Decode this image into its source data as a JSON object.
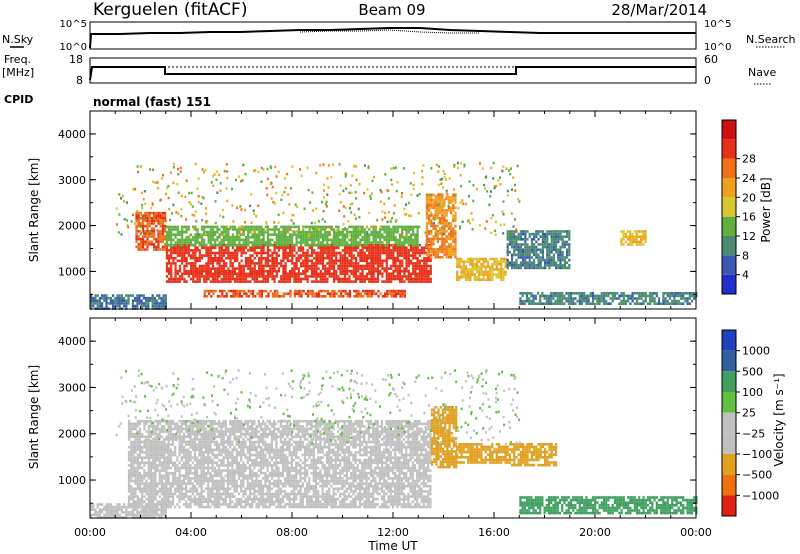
{
  "header": {
    "station": "Kerguelen (fitACF)",
    "beam": "Beam 09",
    "date": "28/Mar/2014"
  },
  "panels": {
    "nsky": {
      "left_label": "N.Sky",
      "right_label": "N.Search",
      "left_ticks": [
        "10^5",
        "10^0"
      ],
      "right_ticks": [
        "10^5",
        "10^0"
      ]
    },
    "freq": {
      "left_label_1": "Freq.",
      "left_label_2": "[MHz]",
      "right_label": "Nave",
      "left_ticks": [
        "18",
        "8"
      ],
      "right_ticks": [
        "60",
        "0"
      ]
    },
    "cpid": {
      "label": "CPID",
      "mode": "normal (fast) 151"
    }
  },
  "colors": {
    "power_scale": [
      "#2030c8",
      "#3a5ab0",
      "#4a8a70",
      "#60b040",
      "#d8c830",
      "#f0a020",
      "#f07018",
      "#e83018",
      "#d01010"
    ],
    "velocity_scale": [
      "#2040c0",
      "#3060a0",
      "#40a060",
      "#60c040",
      "#c0c0c0",
      "#c0c0c0",
      "#e0a020",
      "#f07010",
      "#e02010"
    ]
  },
  "chart_data": [
    {
      "type": "heatmap",
      "name": "power",
      "ylabel": "Slant Range [km]",
      "ylim": [
        180,
        4500
      ],
      "yticks": [
        "1000",
        "2000",
        "3000",
        "4000"
      ],
      "colorbar_label": "Power [dB]",
      "colorbar_ticks": [
        "4",
        "8",
        "12",
        "16",
        "20",
        "24",
        "28"
      ],
      "colorbar_range": [
        0,
        32
      ],
      "regions": [
        {
          "t0": 3.0,
          "t1": 13.5,
          "r0": 800,
          "r1": 1600,
          "value": 28
        },
        {
          "t0": 4.5,
          "t1": 12.5,
          "r0": 450,
          "r1": 600,
          "value": 26
        },
        {
          "t0": 1.8,
          "t1": 3.0,
          "r0": 1500,
          "r1": 2300,
          "value": 26
        },
        {
          "t0": 13.3,
          "t1": 14.5,
          "r0": 1300,
          "r1": 2700,
          "value": 22
        },
        {
          "t0": 14.5,
          "t1": 16.5,
          "r0": 800,
          "r1": 1300,
          "value": 18
        },
        {
          "t0": 3.0,
          "t1": 13.0,
          "r0": 1600,
          "r1": 2000,
          "value": 12
        },
        {
          "t0": 0.0,
          "t1": 3.0,
          "r0": 200,
          "r1": 500,
          "value": 6
        },
        {
          "t0": 17.0,
          "t1": 24.0,
          "r0": 300,
          "r1": 550,
          "value": 7
        },
        {
          "t0": 16.5,
          "t1": 19.0,
          "r0": 1100,
          "r1": 1900,
          "value": 7
        },
        {
          "t0": 21.0,
          "t1": 22.0,
          "r0": 1600,
          "r1": 1900,
          "value": 18
        }
      ]
    },
    {
      "type": "heatmap",
      "name": "velocity",
      "xlabel": "Time UT",
      "ylabel": "Slant Range [km]",
      "xlim": [
        0,
        24
      ],
      "xticks": [
        "00:00",
        "04:00",
        "08:00",
        "12:00",
        "16:00",
        "20:00",
        "00:00"
      ],
      "ylim": [
        180,
        4500
      ],
      "yticks": [
        "1000",
        "2000",
        "3000",
        "4000"
      ],
      "colorbar_label": "Velocity [m s⁻¹]",
      "colorbar_ticks": [
        "1000",
        "500",
        "100",
        "25",
        "−25",
        "−100",
        "−500",
        "−1000"
      ],
      "regions": [
        {
          "t0": 1.5,
          "t1": 13.5,
          "r0": 400,
          "r1": 2300,
          "value": 0
        },
        {
          "t0": 13.5,
          "t1": 14.5,
          "r0": 1300,
          "r1": 2600,
          "value": -300
        },
        {
          "t0": 14.5,
          "t1": 16.5,
          "r0": 1400,
          "r1": 1800,
          "value": -200
        },
        {
          "t0": 16.5,
          "t1": 18.5,
          "r0": 1300,
          "r1": 1800,
          "value": -150
        },
        {
          "t0": 0.0,
          "t1": 3.0,
          "r0": 200,
          "r1": 500,
          "value": -100
        },
        {
          "t0": 17.0,
          "t1": 24.0,
          "r0": 300,
          "r1": 650,
          "value": 150
        }
      ]
    }
  ]
}
